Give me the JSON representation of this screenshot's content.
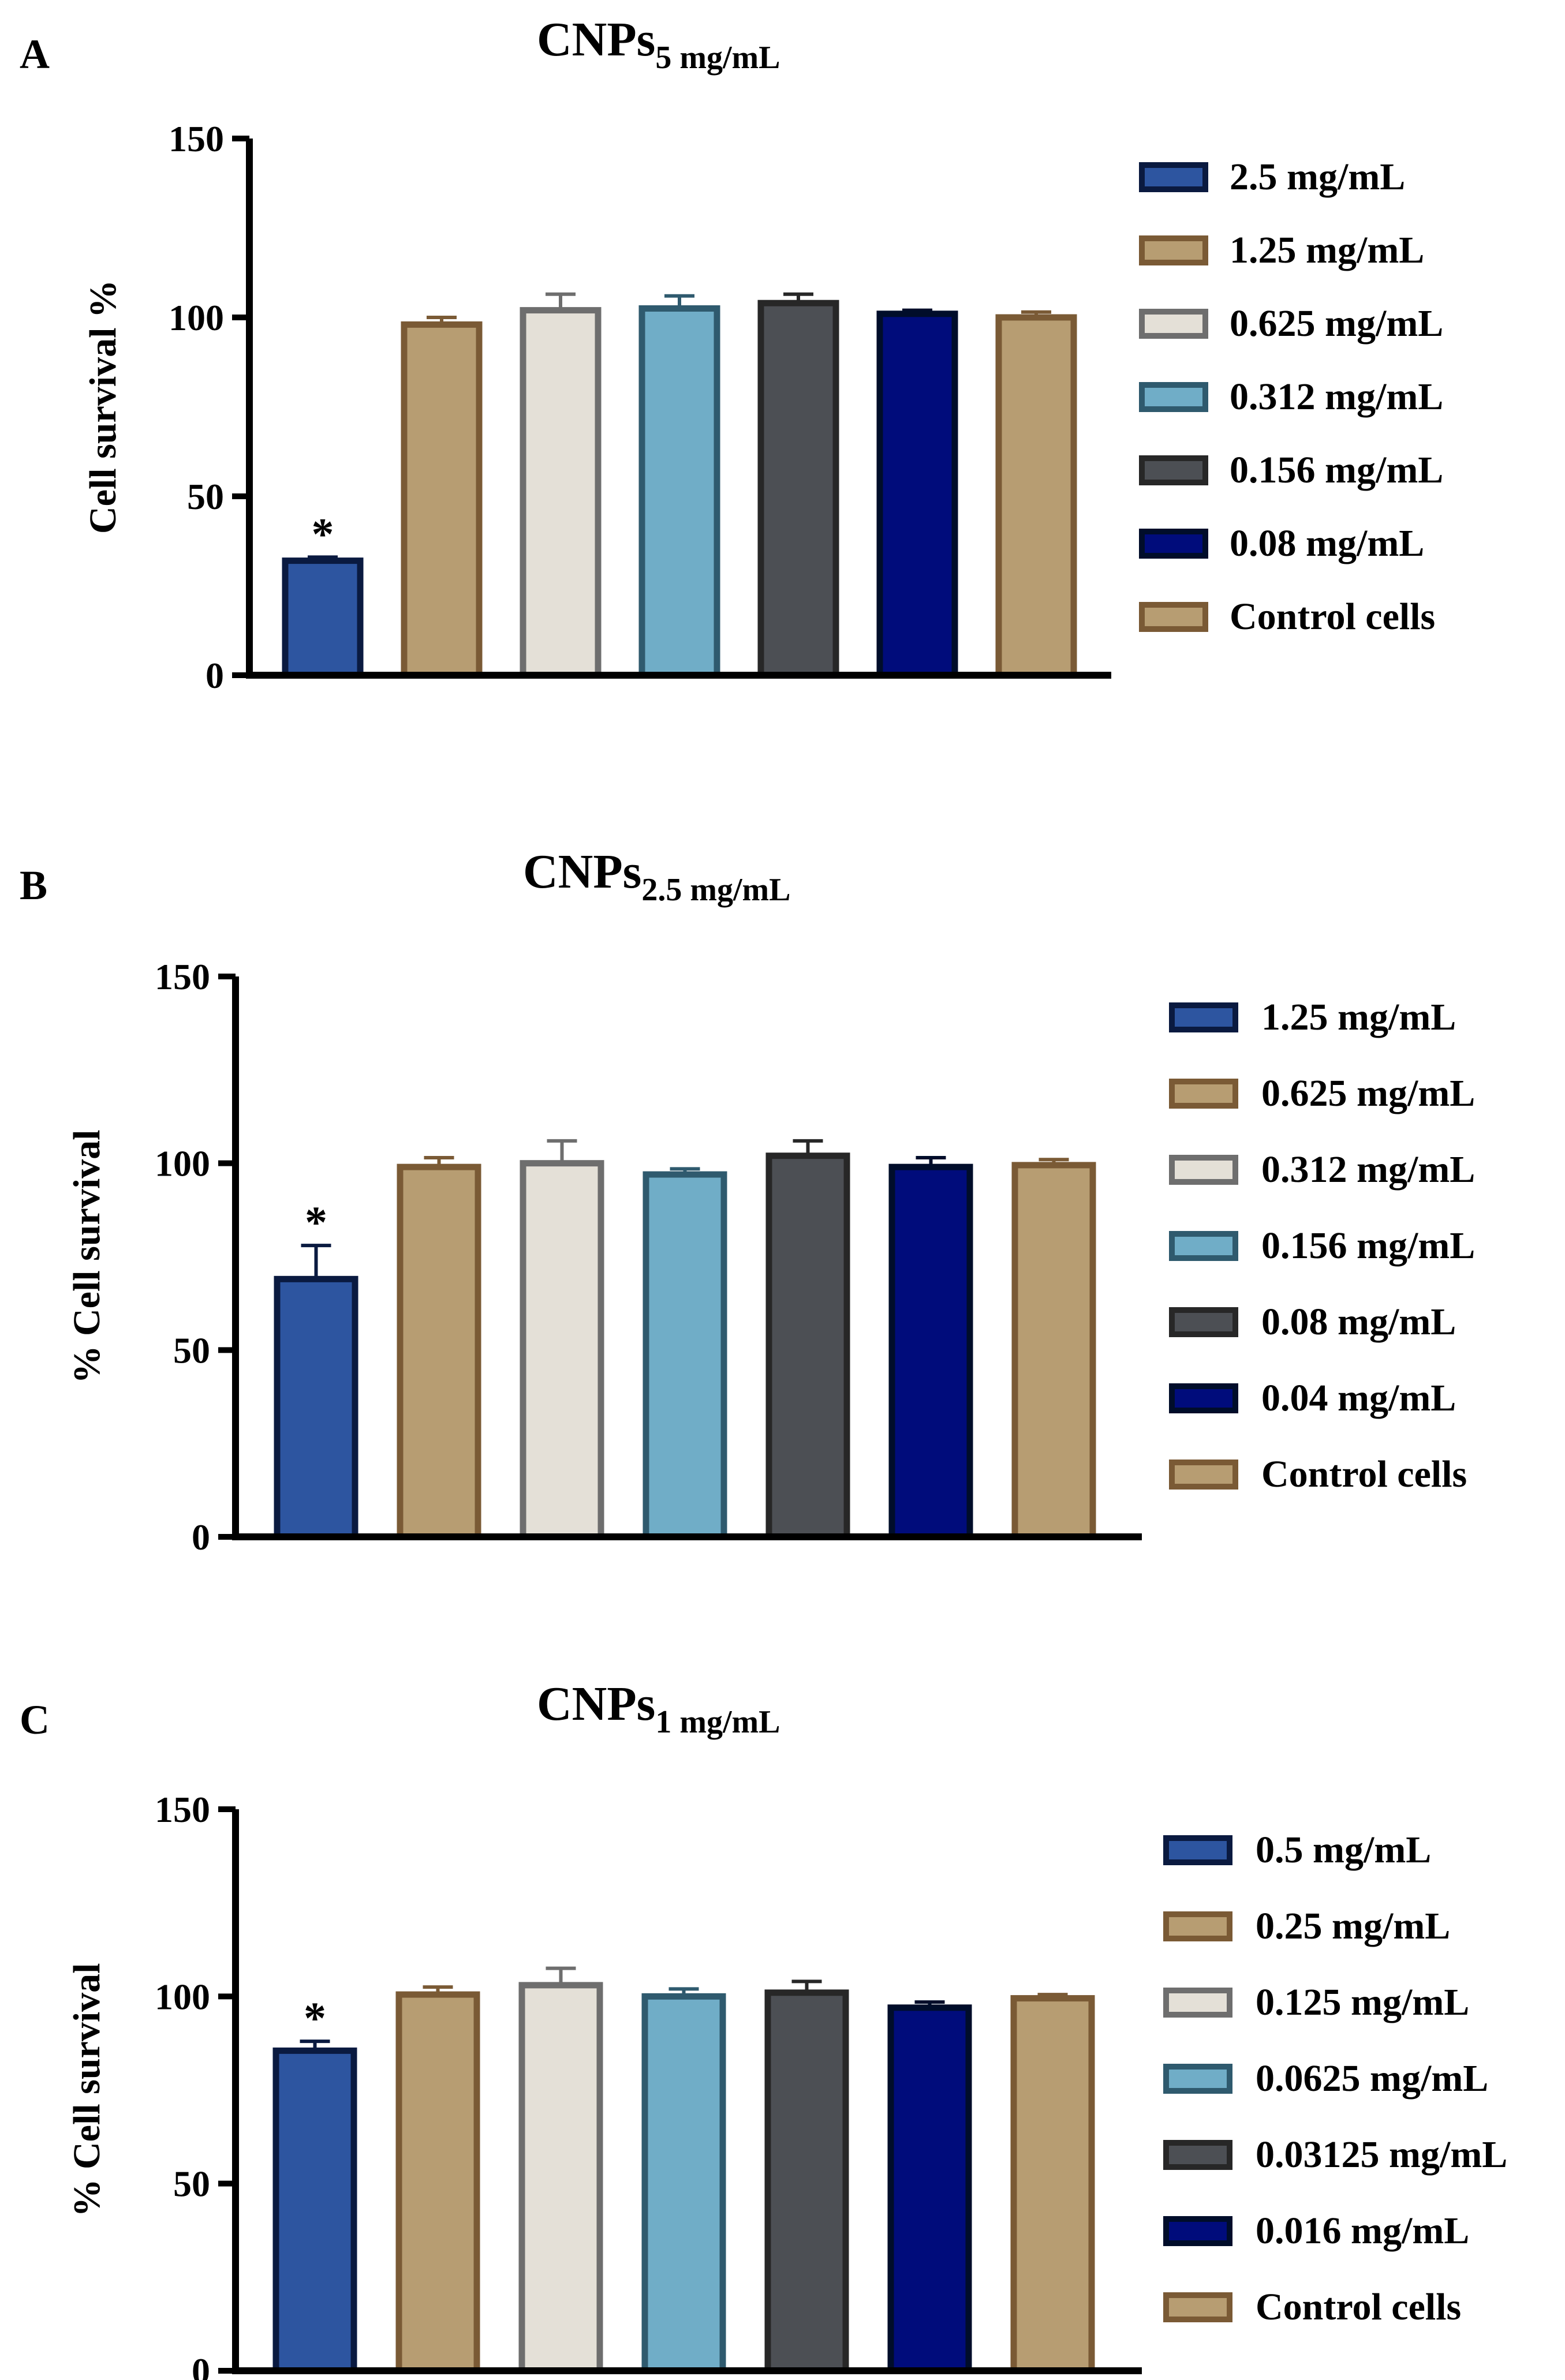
{
  "figure": {
    "panels": [
      "A",
      "B",
      "C"
    ]
  },
  "chart_data": [
    {
      "type": "bar",
      "panel_letter": "A",
      "title_main": "CNPs",
      "title_sub": "5 mg/mL",
      "ylabel": "Cell survival %",
      "ylim": [
        0,
        150
      ],
      "yticks": [
        0,
        50,
        100,
        150
      ],
      "categories": [
        "2.5 mg/mL",
        "1.25 mg/mL",
        "0.625 mg/mL",
        "0.312 mg/mL",
        "0.156 mg/mL",
        "0.08 mg/mL",
        "Control cells"
      ],
      "values": [
        32,
        98,
        102,
        102.5,
        104,
        101,
        100
      ],
      "errors": [
        1,
        2,
        4.5,
        3.5,
        2.5,
        1,
        1.5
      ],
      "significance": [
        "*",
        "",
        "",
        "",
        "",
        "",
        ""
      ],
      "legend_position": "right",
      "colors": {
        "fill": [
          "#2d55a0",
          "#b79d72",
          "#e4e0d7",
          "#70adc7",
          "#4c4f54",
          "#000c7b",
          "#b79d72"
        ],
        "stroke": [
          "#0a1a40",
          "#7a5a35",
          "#6e6e6e",
          "#2f5a6e",
          "#272727",
          "#000d2a",
          "#7a5a35"
        ]
      }
    },
    {
      "type": "bar",
      "panel_letter": "B",
      "title_main": "CNPs",
      "title_sub": "2.5 mg/mL",
      "ylabel": "% Cell survival",
      "ylim": [
        0,
        150
      ],
      "yticks": [
        0,
        50,
        100,
        150
      ],
      "categories": [
        "1.25 mg/mL",
        "0.625 mg/mL",
        "0.312 mg/mL",
        "0.156 mg/mL",
        "0.08 mg/mL",
        "0.04 mg/mL",
        "Control cells"
      ],
      "values": [
        69,
        99,
        100,
        97,
        102,
        99,
        99.5
      ],
      "errors": [
        9,
        2.5,
        6,
        1.5,
        4,
        2.5,
        1.5
      ],
      "significance": [
        "*",
        "",
        "",
        "",
        "",
        "",
        ""
      ],
      "legend_position": "right",
      "colors": {
        "fill": [
          "#2d55a0",
          "#b79d72",
          "#e4e0d7",
          "#70adc7",
          "#4c4f54",
          "#000c7b",
          "#b79d72"
        ],
        "stroke": [
          "#0a1a40",
          "#7a5a35",
          "#6e6e6e",
          "#2f5a6e",
          "#272727",
          "#000d2a",
          "#7a5a35"
        ]
      }
    },
    {
      "type": "bar",
      "panel_letter": "C",
      "title_main": "CNPs",
      "title_sub": "1 mg/mL",
      "ylabel": "% Cell survival",
      "ylim": [
        0,
        150
      ],
      "yticks": [
        0,
        50,
        100,
        150
      ],
      "categories": [
        "0.5 mg/mL",
        "0.25 mg/mL",
        "0.125 mg/mL",
        "0.0625 mg/mL",
        "0.03125 mg/mL",
        "0.016 mg/mL",
        "Control cells"
      ],
      "values": [
        85.5,
        100.5,
        103,
        100,
        101,
        97,
        99.5
      ],
      "errors": [
        2.5,
        2,
        4.5,
        2,
        3,
        1.5,
        1
      ],
      "significance": [
        "*",
        "",
        "",
        "",
        "",
        "",
        ""
      ],
      "legend_position": "right",
      "colors": {
        "fill": [
          "#2d55a0",
          "#b79d72",
          "#e4e0d7",
          "#70adc7",
          "#4c4f54",
          "#000c7b",
          "#b79d72"
        ],
        "stroke": [
          "#0a1a40",
          "#7a5a35",
          "#6e6e6e",
          "#2f5a6e",
          "#272727",
          "#000d2a",
          "#7a5a35"
        ]
      }
    }
  ]
}
